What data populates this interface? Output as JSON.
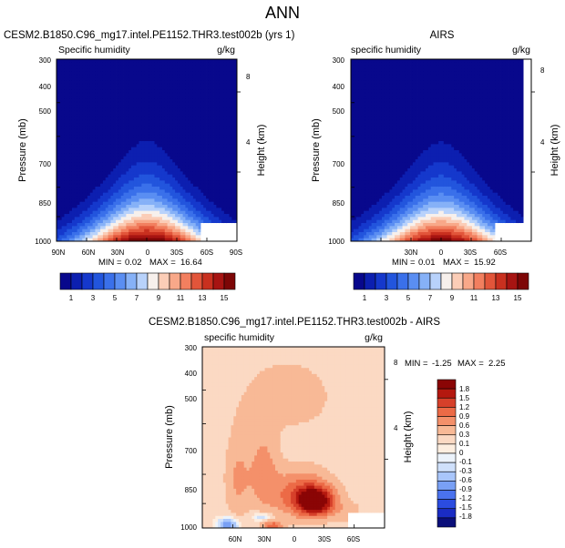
{
  "page_title": "ANN",
  "chart_data": [
    {
      "type": "heatmap",
      "id": "model",
      "case_title": "CESM2.B1850.C96_mg17.intel.PE1152.THR3.test002b (yrs 1)",
      "left_title": "Specific humidity",
      "units": "g/kg",
      "ylabel": "Pressure (mb)",
      "ylabel_right": "Height (km)",
      "yticks": [
        "300",
        "400",
        "500",
        "700",
        "850",
        "1000"
      ],
      "yticks_right": [
        "8",
        "4"
      ],
      "xticks": [
        "90N",
        "60N",
        "30N",
        "0",
        "30S",
        "60S",
        "90S"
      ],
      "ylim": [
        1000,
        300
      ],
      "xlim": [
        90,
        -90
      ],
      "min_label": "MIN =",
      "min_value": "0.02",
      "max_label": "MAX =",
      "max_value": "16.64",
      "z_min": 0.02,
      "z_max": 16.64,
      "peak_latitude": 0,
      "contour_levels": [
        1,
        2,
        3,
        4,
        5,
        6,
        7,
        8,
        9,
        10,
        11,
        12,
        13,
        14,
        15
      ],
      "colorbar_labels": [
        "1",
        "3",
        "5",
        "7",
        "9",
        "11",
        "13",
        "15"
      ]
    },
    {
      "type": "heatmap",
      "id": "obs",
      "case_title": "AIRS",
      "left_title": "specific humidity",
      "units": "g/kg",
      "ylabel": "Pressure (mb)",
      "ylabel_right": "Height (km)",
      "yticks": [
        "300",
        "400",
        "500",
        "700",
        "850",
        "1000"
      ],
      "yticks_right": [
        "8",
        "4"
      ],
      "xticks": [
        "30N",
        "0",
        "30S",
        "60S"
      ],
      "ylim": [
        1000,
        300
      ],
      "xlim": [
        90,
        -90
      ],
      "min_label": "MIN =",
      "min_value": "0.01",
      "max_label": "MAX =",
      "max_value": "15.92",
      "z_min": 0.01,
      "z_max": 15.92,
      "peak_latitude": 0,
      "contour_levels": [
        1,
        2,
        3,
        4,
        5,
        6,
        7,
        8,
        9,
        10,
        11,
        12,
        13,
        14,
        15
      ],
      "colorbar_labels": [
        "1",
        "3",
        "5",
        "7",
        "9",
        "11",
        "13",
        "15"
      ]
    },
    {
      "type": "heatmap",
      "id": "diff",
      "case_title": "CESM2.B1850.C96_mg17.intel.PE1152.THR3.test002b - AIRS",
      "left_title": "specific humidity",
      "units": "g/kg",
      "ylabel": "Pressure (mb)",
      "ylabel_right": "Height (km)",
      "yticks": [
        "300",
        "400",
        "500",
        "700",
        "850",
        "1000"
      ],
      "yticks_right": [
        "8",
        "4"
      ],
      "xticks": [
        "60N",
        "30N",
        "0",
        "30S",
        "60S"
      ],
      "ylim": [
        1000,
        300
      ],
      "xlim": [
        90,
        -90
      ],
      "min_label": "MIN =",
      "min_value": "-1.25",
      "max_label": "MAX =",
      "max_value": "2.25",
      "z_min": -1.25,
      "z_max": 2.25,
      "contour_levels": [
        -1.8,
        -1.5,
        -1.2,
        -0.9,
        -0.6,
        -0.3,
        -0.1,
        0,
        0.1,
        0.3,
        0.6,
        0.9,
        1.2,
        1.5,
        1.8
      ],
      "colorbar_labels": [
        "1.8",
        "1.5",
        "1.2",
        "0.9",
        "0.6",
        "0.3",
        "0.1",
        "0",
        "-0.1",
        "-0.3",
        "-0.6",
        "-0.9",
        "-1.2",
        "-1.5",
        "-1.8"
      ]
    }
  ],
  "colors": {
    "sequential": [
      "#08088c",
      "#0c1fb0",
      "#1538cc",
      "#2255dd",
      "#3a70ea",
      "#5a8ef2",
      "#86b1f7",
      "#b8d2fb",
      "#f7f0ec",
      "#fbcdb7",
      "#f8a889",
      "#f27f5f",
      "#e2553a",
      "#c9301f",
      "#a71412",
      "#7d0606"
    ],
    "diverging": [
      "#0b0f7a",
      "#1a2cc4",
      "#2b4ce0",
      "#4a72ee",
      "#79a0f5",
      "#a9c6fb",
      "#cfe0fb",
      "#ecf3fb",
      "#fdeee0",
      "#fbd9c3",
      "#f8b996",
      "#f4906a",
      "#ec6a46",
      "#d6402a",
      "#b4180f",
      "#8a0505"
    ],
    "missing": "#ffffff"
  }
}
